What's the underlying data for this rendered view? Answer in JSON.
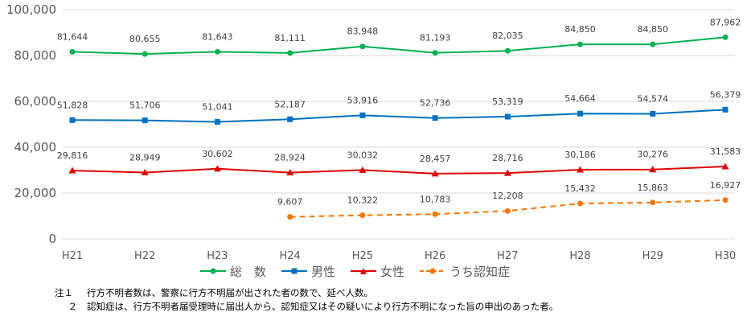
{
  "chart_data": {
    "type": "line",
    "categories": [
      "H21",
      "H22",
      "H23",
      "H24",
      "H25",
      "H26",
      "H27",
      "H28",
      "H29",
      "H30"
    ],
    "ylim": [
      0,
      100000
    ],
    "yticks": [
      "0",
      "20,000",
      "40,000",
      "60,000",
      "80,000",
      "100,000"
    ],
    "yticks_values": [
      0,
      20000,
      40000,
      60000,
      80000,
      100000
    ],
    "grid": true,
    "legend_position": "bottom",
    "series": [
      {
        "name": "総　数",
        "color": "#00B050",
        "marker": "circle",
        "dashed": false,
        "values": [
          81644,
          80655,
          81643,
          81111,
          83948,
          81193,
          82035,
          84850,
          84850,
          87962
        ],
        "labels": [
          "81,644",
          "80,655",
          "81,643",
          "81,111",
          "83,948",
          "81,193",
          "82,035",
          "84,850",
          "84,850",
          "87,962"
        ]
      },
      {
        "name": "男性",
        "color": "#0070C0",
        "marker": "square",
        "dashed": false,
        "values": [
          51828,
          51706,
          51041,
          52187,
          53916,
          52736,
          53319,
          54664,
          54574,
          56379
        ],
        "labels": [
          "51,828",
          "51,706",
          "51,041",
          "52,187",
          "53,916",
          "52,736",
          "53,319",
          "54,664",
          "54,574",
          "56,379"
        ]
      },
      {
        "name": "女性",
        "color": "#E00000",
        "marker": "triangle",
        "dashed": false,
        "values": [
          29816,
          28949,
          30602,
          28924,
          30032,
          28457,
          28716,
          30186,
          30276,
          31583
        ],
        "labels": [
          "29,816",
          "28,949",
          "30,602",
          "28,924",
          "30,032",
          "28,457",
          "28,716",
          "30,186",
          "30,276",
          "31,583"
        ]
      },
      {
        "name": "うち認知症",
        "color": "#F07800",
        "marker": "circle",
        "dashed": true,
        "values": [
          null,
          null,
          null,
          9607,
          10322,
          10783,
          12208,
          15432,
          15863,
          16927
        ],
        "labels": [
          null,
          null,
          null,
          "9,607",
          "10,322",
          "10,783",
          "12,208",
          "15,432",
          "15,863",
          "16,927"
        ]
      }
    ]
  },
  "notes": [
    {
      "num": "注１",
      "text": "行方不明者数は、警察に行方不明届が出された者の数で、延べ人数。"
    },
    {
      "num": "２",
      "text": "認知症は、行方不明者届受理時に届出人から、認知症又はその疑いにより行方不明になった旨の申出のあった者。"
    }
  ]
}
